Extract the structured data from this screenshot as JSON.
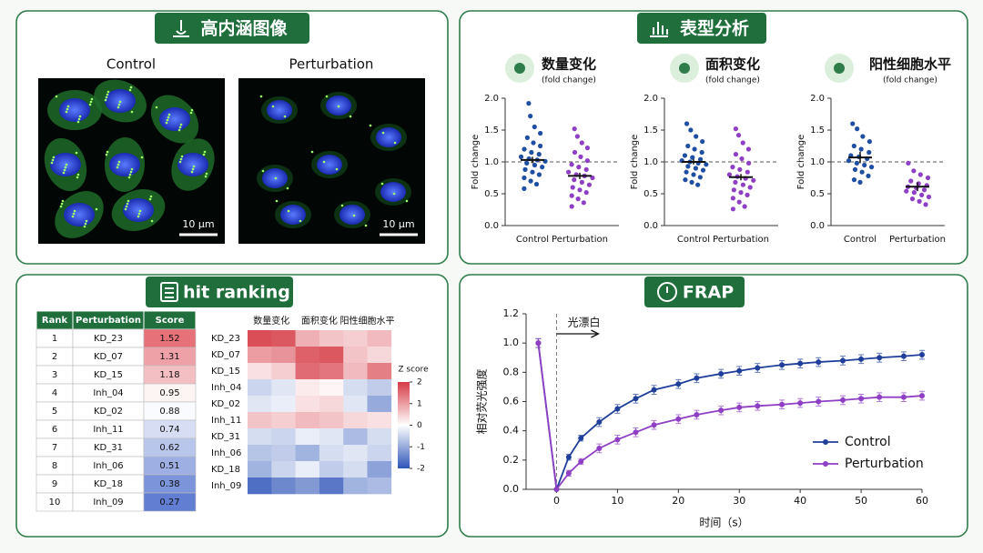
{
  "panels": {
    "imaging": "高内涵图像",
    "phenotype": "表型分析",
    "ranking": "hit ranking",
    "frap": "FRAP"
  },
  "imaging": {
    "images": [
      {
        "label": "Control",
        "scale_bar": "10 μm"
      },
      {
        "label": "Perturbation",
        "scale_bar": "10 μm"
      }
    ]
  },
  "table": {
    "columns": [
      "Rank",
      "Perturbation",
      "Score"
    ],
    "rows": [
      [
        1,
        "KD_23",
        1.52
      ],
      [
        2,
        "KD_07",
        1.31
      ],
      [
        3,
        "KD_15",
        1.18
      ],
      [
        4,
        "Inh_04",
        0.95
      ],
      [
        5,
        "KD_02",
        0.88
      ],
      [
        6,
        "Inh_11",
        0.74
      ],
      [
        7,
        "KD_31",
        0.62
      ],
      [
        8,
        "Inh_06",
        0.51
      ],
      [
        9,
        "KD_18",
        0.38
      ],
      [
        10,
        "Inh_09",
        0.27
      ]
    ]
  },
  "chart_data": [
    {
      "type": "strip",
      "title": "数量变化",
      "subtitle": "(fold change)",
      "ylabel": "Fold change",
      "categories": [
        "Control",
        "Perturbation"
      ],
      "ylim": [
        0,
        2
      ],
      "yticks": [
        {
          "value": 0,
          "label": "0.0"
        },
        0.5,
        {
          "value": 1,
          "label": "1.0"
        },
        1.5,
        {
          "value": 2,
          "label": "2.0"
        }
      ],
      "refline": 1,
      "groups": [
        {
          "color": "#1f4fa3",
          "mean": 1.03,
          "error": 0.05,
          "values": [
            1.92,
            1.72,
            1.55,
            1.45,
            1.38,
            1.3,
            1.25,
            1.2,
            1.15,
            1.12,
            1.08,
            1.05,
            1.03,
            1.01,
            0.98,
            0.95,
            0.92,
            0.88,
            0.84,
            0.8,
            0.75,
            0.7,
            0.65,
            0.58
          ]
        },
        {
          "color": "#8e3fc4",
          "mean": 0.78,
          "error": 0.05,
          "values": [
            1.52,
            1.4,
            1.3,
            1.22,
            1.15,
            1.08,
            1.02,
            0.96,
            0.92,
            0.88,
            0.84,
            0.8,
            0.78,
            0.75,
            0.72,
            0.68,
            0.64,
            0.6,
            0.56,
            0.52,
            0.47,
            0.42,
            0.36,
            0.3
          ]
        }
      ]
    },
    {
      "type": "strip",
      "title": "面积变化",
      "subtitle": "(fold change)",
      "ylabel": "Fold change",
      "categories": [
        "Control",
        "Perturbation"
      ],
      "ylim": [
        0,
        2
      ],
      "yticks": [
        {
          "value": 0,
          "label": "0.0"
        },
        0.5,
        {
          "value": 1,
          "label": "1.0"
        },
        1.5,
        {
          "value": 2,
          "label": "2.0"
        }
      ],
      "refline": 1,
      "groups": [
        {
          "color": "#1f4fa3",
          "mean": 1.0,
          "error": 0.04,
          "values": [
            1.6,
            1.5,
            1.4,
            1.32,
            1.25,
            1.2,
            1.15,
            1.1,
            1.07,
            1.04,
            1.02,
            1.0,
            0.98,
            0.96,
            0.93,
            0.9,
            0.87,
            0.84,
            0.8,
            0.76,
            0.72,
            0.68,
            0.64
          ]
        },
        {
          "color": "#8e3fc4",
          "mean": 0.76,
          "error": 0.05,
          "values": [
            1.52,
            1.42,
            1.3,
            1.2,
            1.12,
            1.05,
            0.98,
            0.92,
            0.88,
            0.84,
            0.8,
            0.77,
            0.74,
            0.71,
            0.68,
            0.64,
            0.6,
            0.56,
            0.52,
            0.48,
            0.43,
            0.37,
            0.3,
            0.26
          ]
        }
      ]
    },
    {
      "type": "strip",
      "title": "阳性细胞水平",
      "subtitle": "(fold change)",
      "ylabel": "Fold change",
      "categories": [
        "Control",
        "Perturbation"
      ],
      "ylim": [
        0,
        2
      ],
      "yticks": [
        {
          "value": 0,
          "label": "0.0"
        },
        0.5,
        {
          "value": 1,
          "label": "1.0"
        },
        1.5,
        {
          "value": 2,
          "label": "2.0"
        }
      ],
      "refline": 1,
      "groups": [
        {
          "color": "#1f4fa3",
          "mean": 1.07,
          "error": 0.09,
          "values": [
            1.6,
            1.52,
            1.4,
            1.32,
            1.25,
            1.2,
            1.15,
            1.1,
            1.08,
            1.05,
            1.02,
            0.98,
            0.95,
            0.92,
            0.88,
            0.84,
            0.78,
            0.72,
            0.68
          ]
        },
        {
          "color": "#8e3fc4",
          "mean": 0.61,
          "error": 0.07,
          "values": [
            0.98,
            0.86,
            0.8,
            0.75,
            0.7,
            0.66,
            0.63,
            0.61,
            0.59,
            0.56,
            0.54,
            0.52,
            0.48,
            0.45,
            0.42,
            0.38,
            0.33
          ]
        }
      ]
    },
    {
      "type": "heatmap",
      "column_groups": [
        "数量变化",
        "面积变化",
        "阳性细胞水平"
      ],
      "rows": [
        "KD_23",
        "KD_07",
        "KD_15",
        "Inh_04",
        "KD_02",
        "Inh_11",
        "KD_31",
        "Inh_06",
        "KD_18",
        "Inh_09"
      ],
      "values": [
        [
          1.8,
          1.7,
          0.8,
          0.6,
          0.5,
          0.7
        ],
        [
          1.0,
          1.1,
          1.6,
          1.7,
          0.6,
          0.4
        ],
        [
          0.3,
          0.5,
          1.5,
          1.4,
          0.7,
          1.3
        ],
        [
          -0.5,
          -0.3,
          0.2,
          0.1,
          -0.4,
          -0.6
        ],
        [
          -0.3,
          -0.2,
          0.3,
          0.4,
          -0.3,
          -1.0
        ],
        [
          0.6,
          0.5,
          0.7,
          0.6,
          0.4,
          0.3
        ],
        [
          -0.4,
          -0.5,
          -0.2,
          -0.3,
          -0.8,
          -0.4
        ],
        [
          -0.7,
          -0.6,
          -0.9,
          -0.4,
          -0.3,
          -0.5
        ],
        [
          -0.9,
          -0.5,
          -0.2,
          -0.6,
          -0.4,
          -1.1
        ],
        [
          -1.7,
          -1.4,
          -1.2,
          -1.6,
          -0.9,
          -0.8
        ]
      ],
      "colorbar_title": "Z score",
      "clim": [
        -2,
        2
      ],
      "cticks": [
        2,
        1,
        0,
        -1,
        -2
      ],
      "colors": [
        "#2f55b8",
        "#ffffff",
        "#d63a45"
      ]
    },
    {
      "type": "line",
      "xlabel": "时间（s）",
      "ylabel": "相对荧光强度",
      "annotation": "光漂白",
      "x": [
        -3,
        0,
        2,
        4,
        7,
        10,
        13,
        16,
        20,
        23,
        27,
        30,
        33,
        37,
        40,
        43,
        47,
        50,
        53,
        57,
        60
      ],
      "xlim": [
        -5,
        60
      ],
      "xticks": [
        0,
        10,
        20,
        30,
        40,
        50,
        60
      ],
      "ylim": [
        0,
        1.2
      ],
      "yticks": [
        {
          "value": 0,
          "label": "0.0"
        },
        0.2,
        0.4,
        0.6,
        0.8,
        {
          "value": 1,
          "label": "1.0"
        },
        1.2
      ],
      "legend": "lower right",
      "series": [
        {
          "name": "Control",
          "color": "#1f3f9a",
          "values": [
            1.0,
            0,
            0.22,
            0.35,
            0.46,
            0.55,
            0.62,
            0.68,
            0.72,
            0.76,
            0.79,
            0.81,
            0.83,
            0.85,
            0.86,
            0.87,
            0.88,
            0.89,
            0.9,
            0.91,
            0.92
          ],
          "errors": [
            0.03,
            0,
            0.02,
            0.02,
            0.03,
            0.03,
            0.03,
            0.03,
            0.03,
            0.03,
            0.03,
            0.03,
            0.03,
            0.03,
            0.03,
            0.03,
            0.03,
            0.03,
            0.03,
            0.03,
            0.03
          ]
        },
        {
          "name": "Perturbation",
          "color": "#8e3fc4",
          "values": [
            1.0,
            0,
            0.11,
            0.19,
            0.28,
            0.34,
            0.39,
            0.44,
            0.48,
            0.51,
            0.54,
            0.56,
            0.57,
            0.58,
            0.59,
            0.6,
            0.61,
            0.62,
            0.63,
            0.63,
            0.64
          ],
          "errors": [
            0.03,
            0,
            0.02,
            0.02,
            0.03,
            0.03,
            0.03,
            0.03,
            0.03,
            0.03,
            0.03,
            0.03,
            0.03,
            0.03,
            0.03,
            0.03,
            0.03,
            0.03,
            0.03,
            0.03,
            0.03
          ]
        }
      ]
    }
  ]
}
